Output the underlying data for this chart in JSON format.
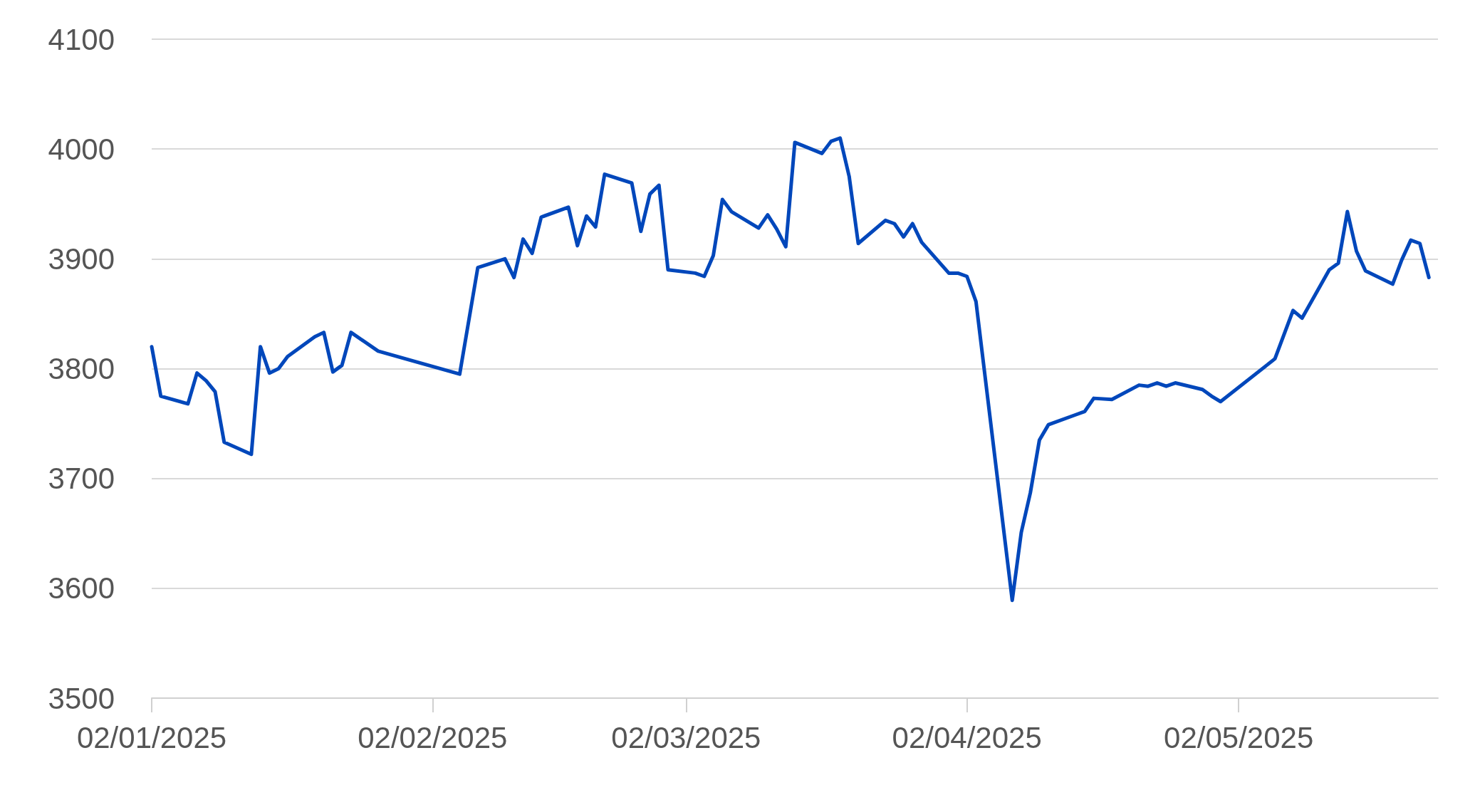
{
  "chart_data": {
    "type": "line",
    "x": [
      "2025-01-02",
      "2025-01-03",
      "2025-01-06",
      "2025-01-07",
      "2025-01-08",
      "2025-01-09",
      "2025-01-10",
      "2025-01-13",
      "2025-01-14",
      "2025-01-15",
      "2025-01-16",
      "2025-01-17",
      "2025-01-20",
      "2025-01-21",
      "2025-01-22",
      "2025-01-23",
      "2025-01-24",
      "2025-01-27",
      "2025-02-05",
      "2025-02-07",
      "2025-02-10",
      "2025-02-11",
      "2025-02-12",
      "2025-02-13",
      "2025-02-14",
      "2025-02-17",
      "2025-02-18",
      "2025-02-19",
      "2025-02-20",
      "2025-02-21",
      "2025-02-24",
      "2025-02-25",
      "2025-02-26",
      "2025-02-27",
      "2025-02-28",
      "2025-03-03",
      "2025-03-04",
      "2025-03-05",
      "2025-03-06",
      "2025-03-07",
      "2025-03-10",
      "2025-03-11",
      "2025-03-12",
      "2025-03-13",
      "2025-03-14",
      "2025-03-17",
      "2025-03-18",
      "2025-03-19",
      "2025-03-20",
      "2025-03-21",
      "2025-03-24",
      "2025-03-25",
      "2025-03-26",
      "2025-03-27",
      "2025-03-28",
      "2025-03-31",
      "2025-04-01",
      "2025-04-02",
      "2025-04-03",
      "2025-04-07",
      "2025-04-08",
      "2025-04-09",
      "2025-04-10",
      "2025-04-11",
      "2025-04-14",
      "2025-04-15",
      "2025-04-16",
      "2025-04-18",
      "2025-04-21",
      "2025-04-22",
      "2025-04-23",
      "2025-04-24",
      "2025-04-25",
      "2025-04-28",
      "2025-04-29",
      "2025-04-30",
      "2025-05-06",
      "2025-05-08",
      "2025-05-09",
      "2025-05-12",
      "2025-05-13",
      "2025-05-14",
      "2025-05-15",
      "2025-05-16",
      "2025-05-19",
      "2025-05-20",
      "2025-05-21",
      "2025-05-22",
      "2025-05-23"
    ],
    "series": [
      {
        "color": "#0047bb",
        "values": [
          3820,
          3775,
          3768,
          3796,
          3789,
          3779,
          3733,
          3722,
          3820,
          3796,
          3800,
          3811,
          3829,
          3833,
          3797,
          3803,
          3833,
          3816,
          3795,
          3892,
          3900,
          3883,
          3918,
          3905,
          3938,
          3947,
          3912,
          3939,
          3929,
          3977,
          3969,
          3925,
          3959,
          3967,
          3890,
          3887,
          3884,
          3903,
          3954,
          3943,
          3928,
          3940,
          3927,
          3911,
          4006,
          3996,
          4007,
          4010,
          3975,
          3914,
          3935,
          3932,
          3920,
          3932,
          3915,
          3887,
          3887,
          3884,
          3861,
          3589,
          3651,
          3687,
          3735,
          3749,
          3758,
          3761,
          3773,
          3772,
          3785,
          3784,
          3787,
          3784,
          3787,
          3781,
          3775,
          3770,
          3809,
          3853,
          3846,
          3890,
          3896,
          3943,
          3907,
          3889,
          3877,
          3899,
          3917,
          3914,
          3883
        ]
      }
    ],
    "xlim": [
      "2025-01-02",
      "2025-05-24"
    ],
    "xticks": [
      {
        "value": "2025-01-02",
        "label": "02/01/2025"
      },
      {
        "value": "2025-02-02",
        "label": "02/02/2025"
      },
      {
        "value": "2025-03-02",
        "label": "02/03/2025"
      },
      {
        "value": "2025-04-02",
        "label": "02/04/2025"
      },
      {
        "value": "2025-05-02",
        "label": "02/05/2025"
      }
    ],
    "ylim": [
      3500,
      4100
    ],
    "yticks": [
      3500,
      3600,
      3700,
      3800,
      3900,
      4000,
      4100
    ],
    "grid": "y",
    "marker": "none",
    "line_style": "solid"
  }
}
